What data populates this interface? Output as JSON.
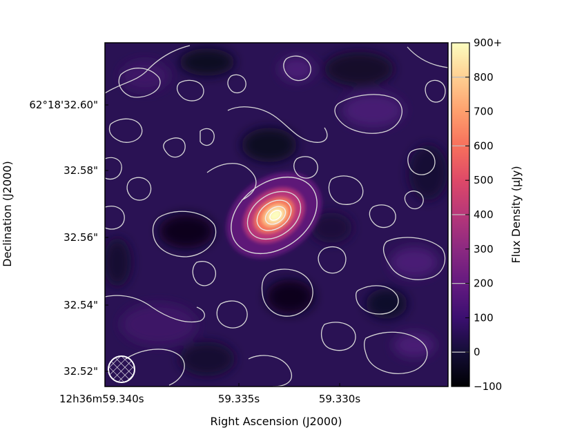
{
  "chart_data": {
    "type": "heatmap",
    "title": "",
    "xlabel": "Right Ascension (J2000)",
    "ylabel": "Declination (J2000)",
    "x_ticks": [
      "12h36m59.340s",
      "59.335s",
      "59.330s"
    ],
    "y_ticks": [
      "62°18'32.60\"",
      "32.58\"",
      "32.56\"",
      "32.54\"",
      "32.52\""
    ],
    "colorbar": {
      "label": "Flux Density (μJy)",
      "min": -100,
      "max": 900,
      "ticks": [
        -100,
        0,
        100,
        200,
        300,
        400,
        500,
        600,
        700,
        800,
        900
      ],
      "tick_labels": [
        "−100",
        "0",
        "100",
        "200",
        "300",
        "400",
        "500",
        "600",
        "700",
        "800",
        "900+"
      ],
      "colormap": "magma",
      "contour_levels": [
        0,
        200,
        400,
        600,
        800
      ]
    },
    "source": {
      "description": "compact bright source, elongated NW-SE",
      "peak_flux": 900,
      "contour_color": "#d8d8d8",
      "peak_contour_color": "#ffffff"
    },
    "grid": false,
    "beam_marker": "bottom-left"
  }
}
